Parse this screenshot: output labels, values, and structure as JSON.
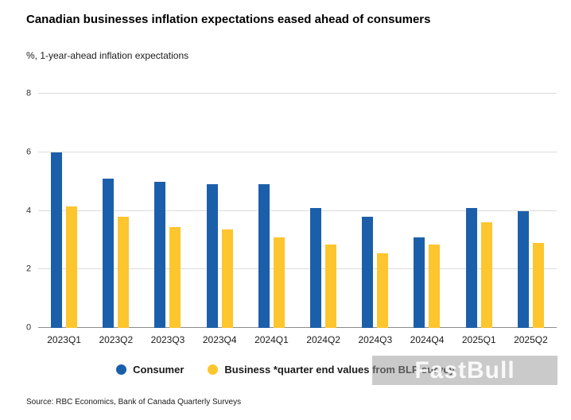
{
  "header": {
    "title": "Canadian businesses inflation expectations eased ahead of consumers",
    "subtitle": "%, 1-year-ahead inflation expectations"
  },
  "chart_data": {
    "type": "bar",
    "categories": [
      "2023Q1",
      "2023Q2",
      "2023Q3",
      "2023Q4",
      "2024Q1",
      "2024Q2",
      "2024Q3",
      "2024Q4",
      "2025Q1",
      "2025Q2"
    ],
    "series": [
      {
        "name": "Consumer",
        "color": "#1b5faa",
        "values": [
          6.0,
          5.1,
          5.0,
          4.9,
          4.9,
          4.1,
          3.8,
          3.1,
          4.1,
          4.0
        ]
      },
      {
        "name": "Business *quarter end values from BLP survey",
        "color": "#fdc52e",
        "values": [
          4.15,
          3.8,
          3.45,
          3.35,
          3.1,
          2.85,
          2.55,
          2.85,
          3.6,
          2.9
        ]
      }
    ],
    "title": "Canadian businesses inflation expectations eased ahead of consumers",
    "xlabel": "",
    "ylabel": "%, 1-year-ahead inflation expectations",
    "ylim": [
      0,
      8
    ],
    "yticks": [
      0,
      2,
      4,
      6,
      8
    ],
    "grid": true,
    "legend_position": "bottom"
  },
  "watermark": "FastBull",
  "footer": {
    "source": "Source: RBC Economics, Bank of Canada Quarterly Surveys"
  }
}
